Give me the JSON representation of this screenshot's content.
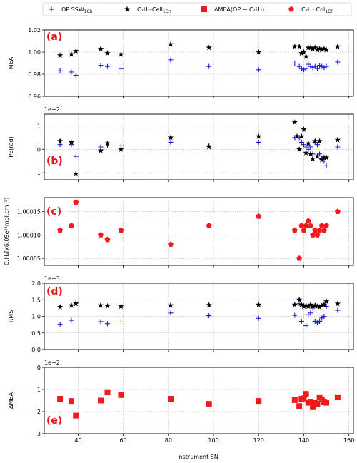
{
  "legend": {
    "items": [
      {
        "label": "OP SSW",
        "sub": "1Ch",
        "marker": "plus",
        "color": "#1a1adb"
      },
      {
        "label": "C₂H₂-Cell",
        "sub": "1Ch",
        "marker": "star",
        "color": "#000000"
      },
      {
        "label": "ΔMEA(OP − C₂H₂)",
        "sub": "",
        "marker": "square",
        "color": "#ee1b1b"
      },
      {
        "label": "C₂H₂ Col",
        "sub": "1Ch",
        "marker": "pentagon",
        "color": "#ee1b1b"
      }
    ]
  },
  "xlabel": "Instrument SN",
  "chart_data": [
    {
      "type": "scatter",
      "panel_label": "(a)",
      "ylabel": "MEA",
      "ylim": [
        0.96,
        1.02
      ],
      "yticks": [
        "0.96",
        "0.98",
        "1.00",
        "1.02"
      ],
      "xlim": [
        25,
        162
      ],
      "xticks": [
        40,
        60,
        80,
        100,
        120,
        140,
        160
      ],
      "grid": true,
      "series": [
        {
          "name": "OP SSW1Ch",
          "marker": "plus",
          "color": "#1a1adb",
          "x": [
            32,
            37,
            39,
            50,
            53,
            59,
            81,
            98,
            120,
            136,
            138,
            139,
            140,
            141,
            142,
            143,
            144,
            145,
            146,
            147,
            148,
            149,
            150,
            155
          ],
          "y": [
            0.983,
            0.982,
            0.979,
            0.988,
            0.987,
            0.985,
            0.993,
            0.987,
            0.984,
            0.99,
            0.987,
            0.985,
            0.984,
            0.985,
            0.989,
            0.987,
            0.986,
            0.987,
            0.985,
            0.988,
            0.987,
            0.986,
            0.987,
            0.991
          ]
        },
        {
          "name": "C2H2-Cell1Ch",
          "marker": "star",
          "color": "#000000",
          "x": [
            32,
            37,
            39,
            50,
            53,
            59,
            81,
            98,
            120,
            136,
            138,
            139,
            140,
            141,
            142,
            143,
            144,
            145,
            146,
            147,
            148,
            149,
            150,
            155
          ],
          "y": [
            0.997,
            0.998,
            1.001,
            1.003,
            0.999,
            0.998,
            1.007,
            1.004,
            1.0,
            1.005,
            1.005,
            0.999,
            1.0,
            0.996,
            1.004,
            1.004,
            1.003,
            1.004,
            1.002,
            1.003,
            1.002,
            1.003,
            1.002,
            1.005
          ]
        }
      ]
    },
    {
      "type": "scatter",
      "panel_label": "(b)",
      "ylabel": "PE(rad)",
      "offset_text": "1e−2",
      "ylim": [
        -1.3,
        1.5
      ],
      "yticks": [
        "−1",
        "0",
        "1"
      ],
      "ytick_values": [
        -1,
        0,
        1
      ],
      "xlim": [
        25,
        162
      ],
      "xticks": [
        40,
        60,
        80,
        100,
        120,
        140,
        160
      ],
      "grid": true,
      "series": [
        {
          "name": "OP SSW1Ch",
          "marker": "plus",
          "color": "#1a1adb",
          "x": [
            32,
            37,
            39,
            50,
            53,
            59,
            81,
            98,
            120,
            136,
            138,
            139,
            140,
            141,
            142,
            143,
            144,
            145,
            146,
            147,
            148,
            149,
            150,
            155
          ],
          "y": [
            0.2,
            0.2,
            -0.3,
            0.1,
            0.15,
            0.15,
            0.3,
            0.15,
            0.3,
            0.5,
            0.5,
            0.3,
            0.2,
            0.1,
            0.0,
            0.1,
            -0.2,
            0.3,
            0.2,
            -0.2,
            -0.4,
            -0.5,
            -0.7,
            0.1
          ]
        },
        {
          "name": "C2H2-Cell1Ch",
          "marker": "star",
          "color": "#000000",
          "x": [
            32,
            37,
            39,
            50,
            53,
            59,
            81,
            98,
            120,
            136,
            137,
            138,
            139,
            140,
            141,
            142,
            143,
            144,
            145,
            146,
            147,
            148,
            149,
            150,
            155
          ],
          "y": [
            0.35,
            0.3,
            -1.05,
            -0.05,
            0.25,
            0.0,
            0.5,
            0.1,
            0.55,
            1.15,
            0.55,
            0.0,
            0.55,
            0.85,
            -0.15,
            0.25,
            -0.2,
            -0.4,
            0.35,
            -0.3,
            0.35,
            -0.45,
            -0.35,
            -0.35,
            0.4
          ]
        }
      ]
    },
    {
      "type": "scatter",
      "panel_label": "(c)",
      "ylabel": "C₂H₂[x6.09e²¹mol.cm⁻²]",
      "ylim": [
        1.000035,
        1.00018
      ],
      "yticks": [
        "1.00005",
        "1.00010",
        "1.00015"
      ],
      "ytick_values": [
        1.00005,
        1.0001,
        1.00015
      ],
      "xlim": [
        25,
        162
      ],
      "xticks": [
        40,
        60,
        80,
        100,
        120,
        140,
        160
      ],
      "grid": true,
      "series": [
        {
          "name": "C2H2 Col1Ch",
          "marker": "pentagon",
          "color": "#ee1b1b",
          "x": [
            32,
            37,
            39,
            50,
            53,
            59,
            81,
            98,
            120,
            136,
            138,
            139,
            140,
            141,
            142,
            143,
            144,
            145,
            146,
            147,
            148,
            149,
            150,
            155
          ],
          "y": [
            1.00011,
            1.00012,
            1.00017,
            1.0001,
            1.00009,
            1.00011,
            1.00008,
            1.00012,
            1.00014,
            1.00011,
            1.00005,
            1.00012,
            1.00011,
            1.00012,
            1.00013,
            1.00012,
            1.0001,
            1.00011,
            1.0001,
            1.00011,
            1.00012,
            1.00011,
            1.00012,
            1.00015
          ]
        }
      ]
    },
    {
      "type": "scatter",
      "panel_label": "(d)",
      "ylabel": "RMS",
      "offset_text": "1e−3",
      "ylim": [
        0.0,
        2.0
      ],
      "yticks": [
        "0.0",
        "0.5",
        "1.0",
        "1.5",
        "2.0"
      ],
      "ytick_values": [
        0,
        0.5,
        1.0,
        1.5,
        2.0
      ],
      "xlim": [
        25,
        162
      ],
      "xticks": [
        40,
        60,
        80,
        100,
        120,
        140,
        160
      ],
      "grid": true,
      "series": [
        {
          "name": "OP SSW1Ch",
          "marker": "plus",
          "color": "#1a1adb",
          "x": [
            32,
            37,
            39,
            50,
            53,
            59,
            81,
            98,
            120,
            136,
            138,
            139,
            140,
            141,
            142,
            143,
            144,
            145,
            146,
            147,
            148,
            149,
            150,
            155
          ],
          "y": [
            0.76,
            0.88,
            1.42,
            0.84,
            0.78,
            0.83,
            1.1,
            1.02,
            0.94,
            1.03,
            1.38,
            0.85,
            1.32,
            0.72,
            1.05,
            1.1,
            1.25,
            0.85,
            0.8,
            0.85,
            0.95,
            1.0,
            1.3,
            1.18
          ]
        },
        {
          "name": "C2H2-Cell1Ch",
          "marker": "star",
          "color": "#000000",
          "x": [
            32,
            37,
            39,
            50,
            53,
            59,
            81,
            98,
            120,
            136,
            138,
            139,
            140,
            141,
            142,
            143,
            144,
            145,
            146,
            147,
            148,
            149,
            150,
            155
          ],
          "y": [
            1.28,
            1.33,
            1.38,
            1.33,
            1.31,
            1.3,
            1.33,
            1.34,
            1.35,
            1.35,
            1.5,
            1.35,
            1.3,
            1.33,
            1.3,
            1.35,
            1.3,
            1.33,
            1.3,
            1.28,
            1.32,
            1.35,
            1.45,
            1.38
          ]
        }
      ]
    },
    {
      "type": "scatter",
      "panel_label": "(e)",
      "ylabel": "ΔMEA",
      "offset_text": "1e−2",
      "ylim": [
        -3.0,
        0.0
      ],
      "yticks": [
        "−3",
        "−2",
        "−1",
        "0"
      ],
      "ytick_values": [
        -3,
        -2,
        -1,
        0
      ],
      "xlim": [
        25,
        162
      ],
      "xticks": [
        40,
        60,
        80,
        100,
        120,
        140,
        160
      ],
      "xticklabels": [
        "40",
        "60",
        "80",
        "100",
        "120",
        "140",
        "160"
      ],
      "grid": true,
      "series": [
        {
          "name": "ΔMEA(OP−C2H2)",
          "marker": "square",
          "color": "#ee1b1b",
          "x": [
            32,
            37,
            39,
            50,
            53,
            59,
            81,
            98,
            120,
            136,
            138,
            139,
            140,
            141,
            142,
            143,
            144,
            145,
            146,
            147,
            148,
            149,
            150,
            155
          ],
          "y": [
            -1.42,
            -1.52,
            -2.18,
            -1.5,
            -1.12,
            -1.25,
            -1.42,
            -1.65,
            -1.52,
            -1.48,
            -1.75,
            -1.42,
            -1.4,
            -1.2,
            -1.6,
            -1.55,
            -1.8,
            -1.6,
            -1.65,
            -1.35,
            -1.45,
            -1.55,
            -1.6,
            -1.35
          ]
        }
      ]
    }
  ]
}
